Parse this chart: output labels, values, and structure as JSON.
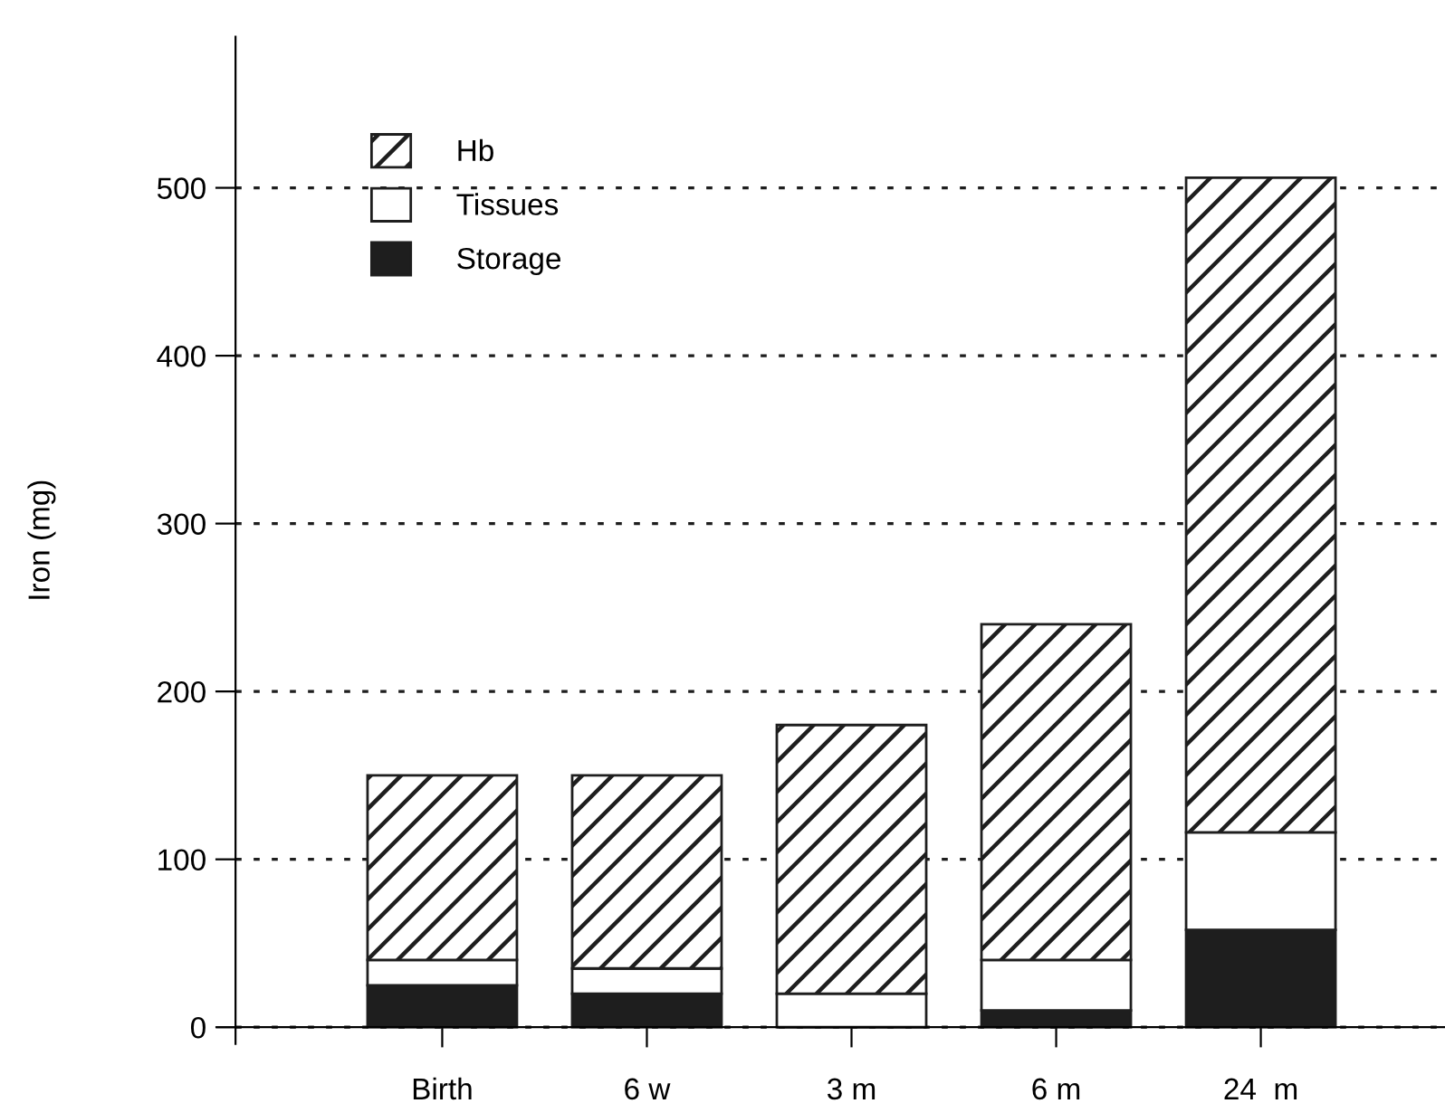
{
  "chart_data": {
    "type": "bar",
    "stacked": true,
    "ylabel": "Iron (mg)",
    "categories": [
      "Birth",
      "6 w",
      "3 m",
      "6 m",
      "24  m"
    ],
    "series": [
      {
        "name": "Storage",
        "color": "#1e1e1e",
        "values": [
          25,
          20,
          0,
          10,
          58
        ]
      },
      {
        "name": "Tissues",
        "color": "#ffffff",
        "values": [
          15,
          15,
          20,
          30,
          58
        ]
      },
      {
        "name": "Hb",
        "color": "#1e1e1e",
        "values": [
          110,
          115,
          160,
          200,
          390
        ]
      }
    ],
    "ylim": [
      -10,
      590
    ],
    "yticks": [
      0,
      100,
      200,
      300,
      400,
      500
    ],
    "grid": "y",
    "legend": "top left"
  }
}
